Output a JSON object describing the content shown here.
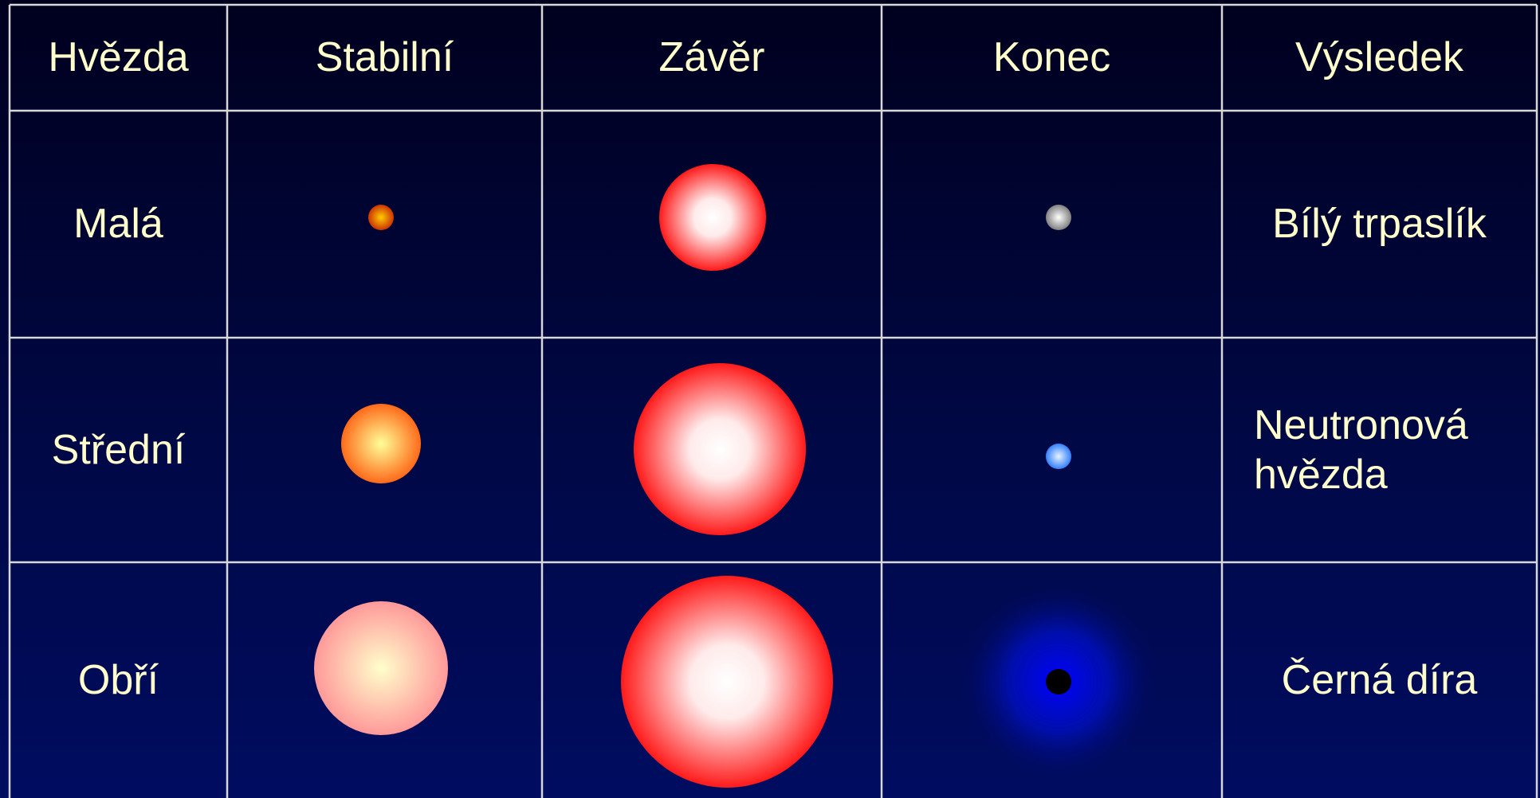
{
  "table": {
    "header": [
      "Hvězda",
      "Stabilní",
      "Závěr",
      "Konec",
      "Výsledek"
    ],
    "rows": [
      [
        "Malá",
        "Bílý trpaslík"
      ],
      [
        "Střední",
        "Neutronová hvězda"
      ],
      [
        "Obří",
        "Černá díra"
      ]
    ]
  }
}
